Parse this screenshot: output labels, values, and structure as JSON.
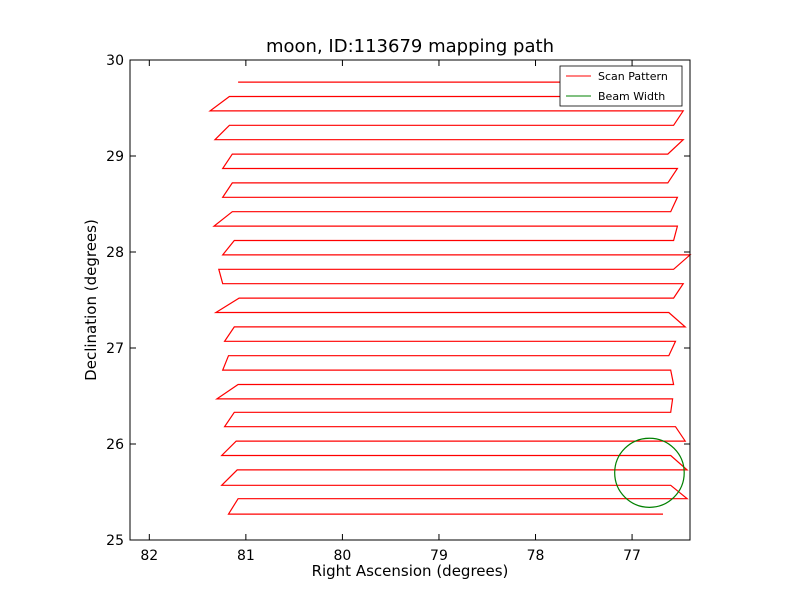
{
  "chart_data": {
    "type": "line",
    "title": "moon, ID:113679 mapping path",
    "xlabel": "Right Ascension (degrees)",
    "ylabel": "Declination (degrees)",
    "xlim": [
      82.2,
      76.4
    ],
    "ylim": [
      25,
      30
    ],
    "x_reversed": true,
    "xticks": [
      82,
      81,
      80,
      79,
      78,
      77
    ],
    "yticks": [
      25,
      26,
      27,
      28,
      29,
      30
    ],
    "grid": false,
    "legend_position": "upper right",
    "legend": [
      {
        "label": "Scan Pattern",
        "color": "#ff0000"
      },
      {
        "label": "Beam Width",
        "color": "#008000"
      }
    ],
    "series": [
      {
        "name": "Scan Pattern",
        "color": "#ff0000",
        "style": "raster",
        "rows": [
          {
            "y": 25.27,
            "x_min": 81.18,
            "x_max": 76.68
          },
          {
            "y": 25.43,
            "x_min": 81.08,
            "x_max": 76.43
          },
          {
            "y": 25.57,
            "x_min": 81.25,
            "x_max": 76.6
          },
          {
            "y": 25.73,
            "x_min": 81.09,
            "x_max": 76.43
          },
          {
            "y": 25.88,
            "x_min": 81.25,
            "x_max": 76.6
          },
          {
            "y": 26.03,
            "x_min": 81.1,
            "x_max": 76.45
          },
          {
            "y": 26.18,
            "x_min": 81.22,
            "x_max": 76.55
          },
          {
            "y": 26.33,
            "x_min": 81.12,
            "x_max": 76.6
          },
          {
            "y": 26.47,
            "x_min": 81.3,
            "x_max": 76.58
          },
          {
            "y": 26.62,
            "x_min": 81.08,
            "x_max": 76.57
          },
          {
            "y": 26.77,
            "x_min": 81.24,
            "x_max": 76.6
          },
          {
            "y": 26.92,
            "x_min": 81.18,
            "x_max": 76.62
          },
          {
            "y": 27.07,
            "x_min": 81.22,
            "x_max": 76.55
          },
          {
            "y": 27.22,
            "x_min": 81.12,
            "x_max": 76.45
          },
          {
            "y": 27.37,
            "x_min": 81.31,
            "x_max": 76.62
          },
          {
            "y": 27.52,
            "x_min": 81.07,
            "x_max": 76.57
          },
          {
            "y": 27.67,
            "x_min": 81.24,
            "x_max": 76.47
          },
          {
            "y": 27.82,
            "x_min": 81.28,
            "x_max": 76.57
          },
          {
            "y": 27.97,
            "x_min": 81.24,
            "x_max": 76.4
          },
          {
            "y": 28.12,
            "x_min": 81.12,
            "x_max": 76.57
          },
          {
            "y": 28.27,
            "x_min": 81.33,
            "x_max": 76.53
          },
          {
            "y": 28.42,
            "x_min": 81.14,
            "x_max": 76.6
          },
          {
            "y": 28.57,
            "x_min": 81.24,
            "x_max": 76.53
          },
          {
            "y": 28.72,
            "x_min": 81.14,
            "x_max": 76.63
          },
          {
            "y": 28.87,
            "x_min": 81.24,
            "x_max": 76.53
          },
          {
            "y": 29.02,
            "x_min": 81.14,
            "x_max": 76.63
          },
          {
            "y": 29.17,
            "x_min": 81.32,
            "x_max": 76.47
          },
          {
            "y": 29.32,
            "x_min": 81.17,
            "x_max": 76.57
          },
          {
            "y": 29.47,
            "x_min": 81.37,
            "x_max": 76.47
          },
          {
            "y": 29.62,
            "x_min": 81.17,
            "x_max": 76.7
          },
          {
            "y": 29.77,
            "x_min": 81.08,
            "x_max": 76.72
          }
        ]
      },
      {
        "name": "Beam Width",
        "color": "#008000",
        "style": "circle",
        "center": {
          "x": 76.82,
          "y": 25.7
        },
        "radius_deg": 0.36
      }
    ]
  }
}
